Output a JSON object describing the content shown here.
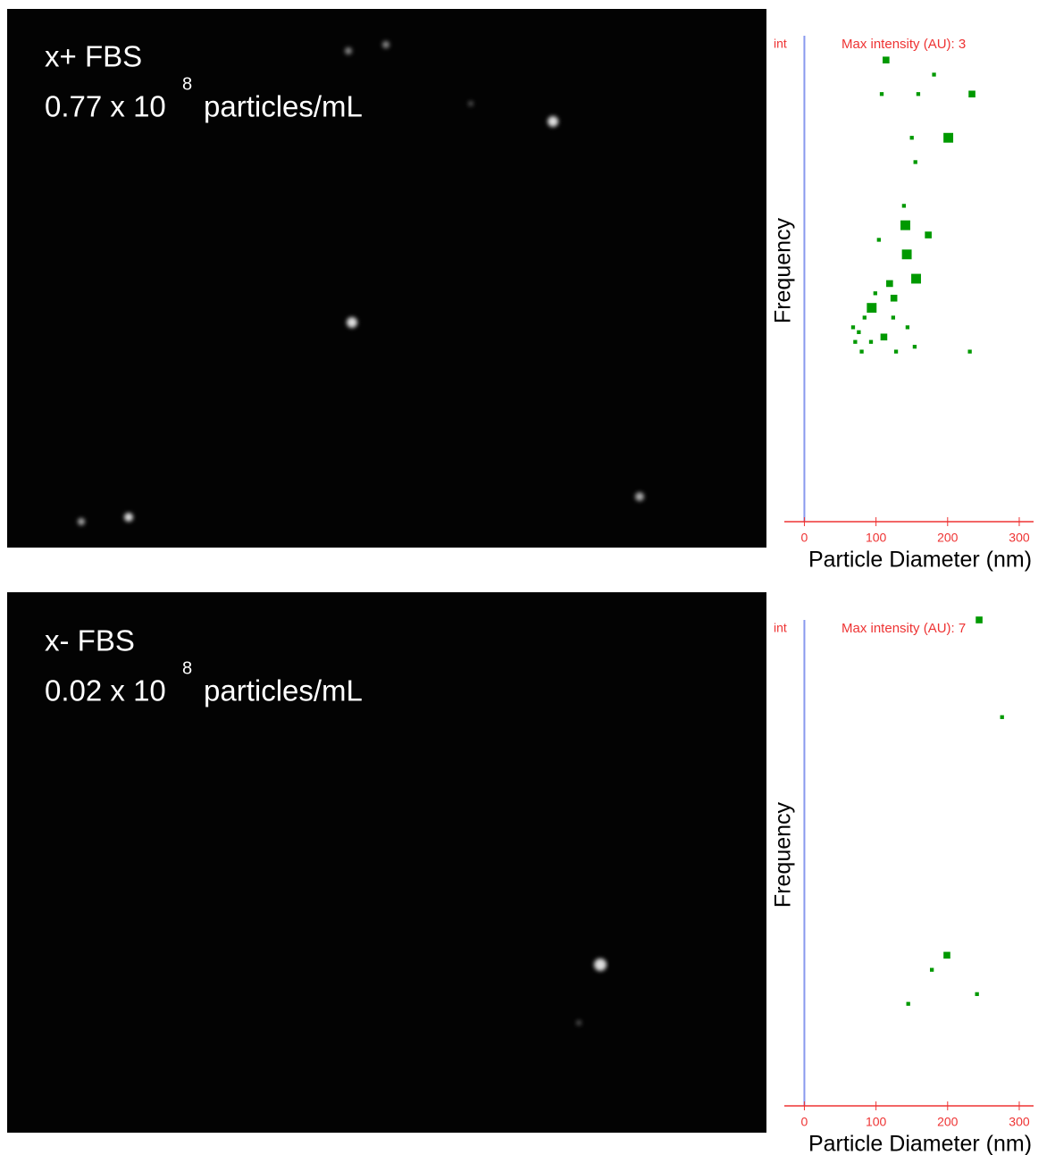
{
  "images": [
    {
      "label": "x+ FBS",
      "concentration": "0.77 x 10",
      "exponent": "8",
      "unit": "particles/mL"
    },
    {
      "label": "x- FBS",
      "concentration": "0.02 x 10",
      "exponent": "8",
      "unit": "particles/mL"
    }
  ],
  "chart_data": [
    {
      "type": "scatter",
      "y_tag": "int",
      "annotation": "Max intensity (AU): 3",
      "x_label": "Particle Diameter (nm)",
      "y_label": "Frequency",
      "xlim": [
        -28,
        320
      ],
      "xticks": [
        0,
        100,
        200,
        300
      ],
      "ylim": [
        0,
        100
      ],
      "color": "#009900",
      "series": [
        {
          "color": "#009900",
          "x": [
            114,
            234,
            201,
            141,
            173,
            143,
            156,
            119,
            125,
            94,
            150,
            159,
            108,
            155,
            139,
            104,
            111,
            84,
            76,
            93,
            71,
            144,
            231,
            181,
            128,
            80,
            154,
            99,
            68,
            124
          ],
          "values": [
            95,
            88,
            79,
            61,
            59,
            55,
            50,
            49,
            46,
            44,
            79,
            88,
            88,
            74,
            65,
            58,
            38,
            42,
            39,
            37,
            37,
            40,
            35,
            92,
            35,
            35,
            36,
            47,
            40,
            42
          ],
          "sizes": [
            2,
            2,
            3,
            3,
            2,
            3,
            3,
            2,
            2,
            3,
            1,
            1,
            1,
            1,
            1,
            1,
            2,
            1,
            1,
            1,
            1,
            1,
            1,
            1,
            1,
            1,
            1,
            1,
            1,
            1
          ]
        }
      ]
    },
    {
      "type": "scatter",
      "y_tag": "int",
      "annotation": "Max intensity (AU): 7",
      "x_label": "Particle Diameter (nm)",
      "y_label": "Frequency",
      "xlim": [
        -28,
        320
      ],
      "xticks": [
        0,
        100,
        200,
        300
      ],
      "ylim": [
        0,
        100
      ],
      "color": "#009900",
      "series": [
        {
          "color": "#009900",
          "x": [
            244,
            276,
            199,
            178,
            241,
            145
          ],
          "values": [
            100,
            80,
            31,
            28,
            23,
            21
          ],
          "sizes": [
            2,
            1,
            2,
            1,
            1,
            1
          ]
        }
      ]
    }
  ]
}
